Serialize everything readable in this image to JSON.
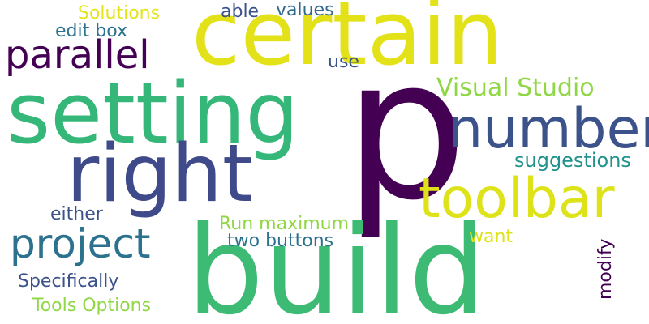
{
  "words": [
    {
      "text": "p",
      "color": "#440154"
    },
    {
      "text": "build",
      "color": "#3dbb74"
    },
    {
      "text": "certain",
      "color": "#e3e117"
    },
    {
      "text": "setting",
      "color": "#35b779"
    },
    {
      "text": "right",
      "color": "#3e4a89"
    },
    {
      "text": "number",
      "color": "#3b528b"
    },
    {
      "text": "toolbar",
      "color": "#dde318"
    },
    {
      "text": "project",
      "color": "#2c728e"
    },
    {
      "text": "parallel",
      "color": "#440154"
    },
    {
      "text": "Visual Studio",
      "color": "#8fd744"
    },
    {
      "text": "suggestions",
      "color": "#21918c"
    },
    {
      "text": "Solutions",
      "color": "#e5e419"
    },
    {
      "text": "edit box",
      "color": "#2c728e"
    },
    {
      "text": "able",
      "color": "#3b528b"
    },
    {
      "text": "values",
      "color": "#31688e"
    },
    {
      "text": "use",
      "color": "#3b528b"
    },
    {
      "text": "either",
      "color": "#3b528b"
    },
    {
      "text": "Run maximum",
      "color": "#8fd744"
    },
    {
      "text": "two buttons",
      "color": "#2c728e"
    },
    {
      "text": "want",
      "color": "#dde318"
    },
    {
      "text": "modify",
      "color": "#440154"
    },
    {
      "text": "Specifically",
      "color": "#3b528b"
    },
    {
      "text": "Tools Options",
      "color": "#8fd744"
    }
  ]
}
